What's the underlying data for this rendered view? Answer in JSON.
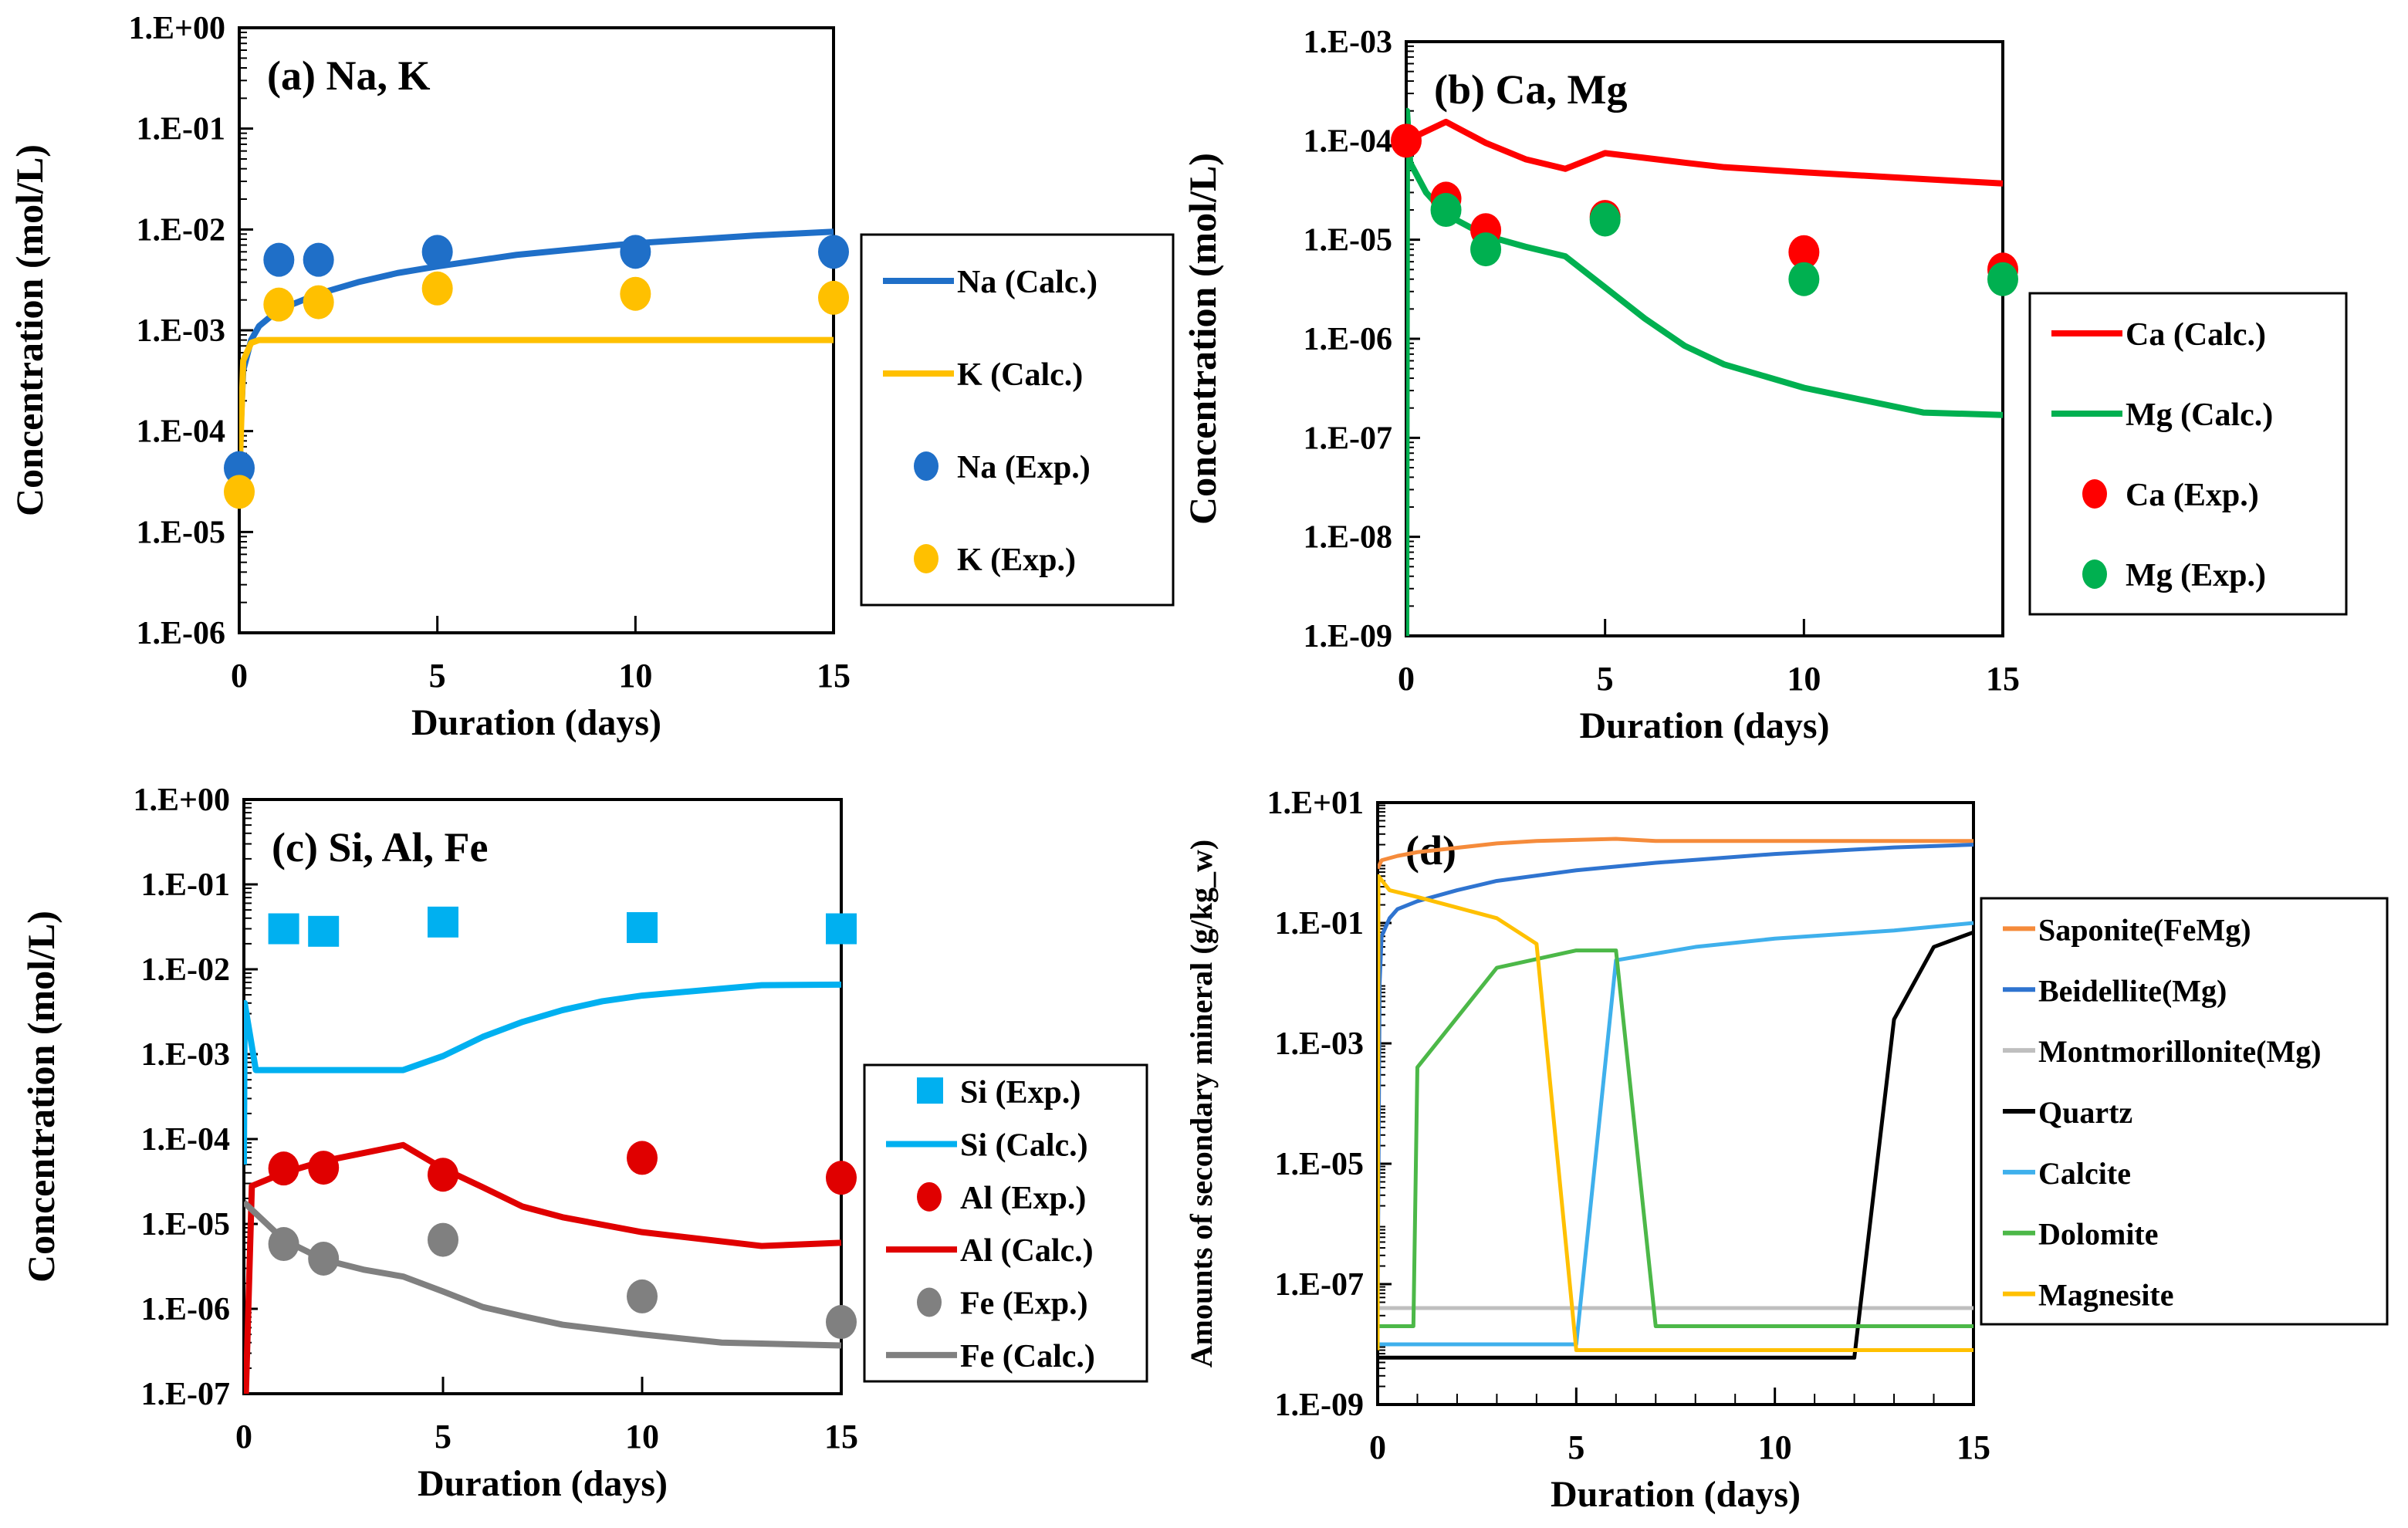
{
  "chart_data": [
    {
      "id": "a",
      "type": "line+scatter",
      "title": "(a) Na, K",
      "xlabel": "Duration (days)",
      "ylabel": "Concentration (mol/L)",
      "xlim": [
        0,
        15
      ],
      "ylim": [
        1e-06,
        1
      ],
      "yscale": "log",
      "xticks": [
        0,
        5,
        10,
        15
      ],
      "yticks": [
        1e-06,
        1e-05,
        0.0001,
        0.001,
        0.01,
        0.1,
        1
      ],
      "ytick_labels": [
        "1.E-06",
        "1.E-05",
        "1.E-04",
        "1.E-03",
        "1.E-02",
        "1.E-01",
        "1.E+00"
      ],
      "legend_position": "right",
      "series": [
        {
          "name": "Na (Calc.)",
          "kind": "line",
          "color": "#1f6fc8",
          "x": [
            0,
            0.1,
            0.3,
            0.5,
            1,
            2,
            3,
            4,
            5,
            7,
            10,
            13,
            15
          ],
          "y": [
            5e-05,
            0.0004,
            0.0008,
            0.0011,
            0.0016,
            0.0023,
            0.003,
            0.0037,
            0.0043,
            0.0056,
            0.0073,
            0.0087,
            0.0095
          ]
        },
        {
          "name": "K (Calc.)",
          "kind": "line",
          "color": "#ffc000",
          "x": [
            0,
            0.1,
            0.3,
            0.5,
            15
          ],
          "y": [
            3e-05,
            0.0005,
            0.00075,
            0.0008,
            0.0008
          ]
        },
        {
          "name": "Na (Exp.)",
          "kind": "circle",
          "color": "#1f6fc8",
          "x": [
            0,
            1,
            2,
            5,
            10,
            15
          ],
          "y": [
            4.3e-05,
            0.005,
            0.005,
            0.006,
            0.006,
            0.006
          ]
        },
        {
          "name": "K (Exp.)",
          "kind": "circle",
          "color": "#ffc000",
          "x": [
            0,
            1,
            2,
            5,
            10,
            15
          ],
          "y": [
            2.5e-05,
            0.0018,
            0.0019,
            0.0026,
            0.0023,
            0.0021
          ]
        }
      ]
    },
    {
      "id": "b",
      "type": "line+scatter",
      "title": "(b) Ca, Mg",
      "xlabel": "Duration (days)",
      "ylabel": "Concentration (mol/L)",
      "xlim": [
        0,
        15
      ],
      "ylim": [
        1e-09,
        0.001
      ],
      "yscale": "log",
      "xticks": [
        0,
        5,
        10,
        15
      ],
      "yticks": [
        1e-09,
        1e-08,
        1e-07,
        1e-06,
        1e-05,
        0.0001,
        0.001
      ],
      "ytick_labels": [
        "1.E-09",
        "1.E-08",
        "1.E-07",
        "1.E-06",
        "1.E-05",
        "1.E-04",
        "1.E-03"
      ],
      "legend_position": "right",
      "series": [
        {
          "name": "Ca (Calc.)",
          "kind": "line",
          "color": "#ff0000",
          "x": [
            0,
            1,
            2,
            3,
            4,
            5,
            7,
            8,
            10,
            13,
            15
          ],
          "y": [
            0.0001,
            0.000155,
            9.5e-05,
            6.5e-05,
            5.2e-05,
            7.5e-05,
            6e-05,
            5.4e-05,
            4.8e-05,
            4.1e-05,
            3.7e-05
          ]
        },
        {
          "name": "Mg (Calc.)",
          "kind": "line",
          "color": "#00b050",
          "x": [
            0,
            0.02,
            0.1,
            0.5,
            1,
            2,
            3,
            4,
            5,
            6,
            7,
            8,
            10,
            13,
            15
          ],
          "y": [
            1e-09,
            0.0002,
            6e-05,
            3e-05,
            1.8e-05,
            1.1e-05,
            8.5e-06,
            6.8e-06,
            3.3e-06,
            1.6e-06,
            8.5e-07,
            5.5e-07,
            3.2e-07,
            1.8e-07,
            1.7e-07
          ]
        },
        {
          "name": "Ca (Exp.)",
          "kind": "circle",
          "color": "#ff0000",
          "x": [
            0,
            1,
            2,
            5,
            10,
            15
          ],
          "y": [
            0.0001,
            2.6e-05,
            1.25e-05,
            1.7e-05,
            7.5e-06,
            5e-06
          ]
        },
        {
          "name": "Mg (Exp.)",
          "kind": "circle",
          "color": "#00b050",
          "x": [
            1,
            2,
            5,
            10,
            15
          ],
          "y": [
            2e-05,
            8e-06,
            1.6e-05,
            4e-06,
            4e-06
          ]
        }
      ]
    },
    {
      "id": "c",
      "type": "line+scatter",
      "title": "(c) Si, Al, Fe",
      "xlabel": "Duration (days)",
      "ylabel": "Concentration (mol/L)",
      "xlim": [
        0,
        15
      ],
      "ylim": [
        1e-07,
        1
      ],
      "yscale": "log",
      "xticks": [
        0,
        5,
        10,
        15
      ],
      "yticks": [
        1e-07,
        1e-06,
        1e-05,
        0.0001,
        0.001,
        0.01,
        0.1,
        1
      ],
      "ytick_labels": [
        "1.E-07",
        "1.E-06",
        "1.E-05",
        "1.E-04",
        "1.E-03",
        "1.E-02",
        "1.E-01",
        "1.E+00"
      ],
      "legend_position": "right",
      "series": [
        {
          "name": "Si (Exp.)",
          "kind": "square",
          "color": "#00b0f0",
          "x": [
            1,
            2,
            5,
            10,
            15
          ],
          "y": [
            0.03,
            0.028,
            0.036,
            0.031,
            0.03
          ]
        },
        {
          "name": "Si (Calc.)",
          "kind": "line",
          "color": "#00b0f0",
          "x": [
            0,
            0.02,
            0.3,
            4,
            5,
            6,
            7,
            8,
            9,
            10,
            13,
            15
          ],
          "y": [
            5e-05,
            0.004,
            0.00065,
            0.00065,
            0.00095,
            0.0016,
            0.0024,
            0.0033,
            0.0042,
            0.0049,
            0.0065,
            0.0066
          ]
        },
        {
          "name": "Al (Exp.)",
          "kind": "circle",
          "color": "#e00000",
          "x": [
            1,
            2,
            5,
            10,
            15
          ],
          "y": [
            4.5e-05,
            4.6e-05,
            3.8e-05,
            6e-05,
            3.5e-05
          ]
        },
        {
          "name": "Al (Calc.)",
          "kind": "line",
          "color": "#e00000",
          "x": [
            0,
            0.05,
            0.2,
            1,
            2,
            4,
            5,
            6,
            7,
            8,
            10,
            13,
            15
          ],
          "y": [
            1e-07,
            1e-07,
            2.8e-05,
            4e-05,
            5.5e-05,
            8.5e-05,
            4.5e-05,
            2.7e-05,
            1.6e-05,
            1.2e-05,
            8e-06,
            5.5e-06,
            6e-06
          ]
        },
        {
          "name": "Fe (Exp.)",
          "kind": "circle",
          "color": "#808080",
          "x": [
            1,
            2,
            5,
            10,
            15
          ],
          "y": [
            5.8e-06,
            3.9e-06,
            6.5e-06,
            1.4e-06,
            7e-07
          ]
        },
        {
          "name": "Fe (Calc.)",
          "kind": "line",
          "color": "#808080",
          "x": [
            0,
            1,
            2,
            3,
            4,
            5,
            6,
            7,
            8,
            10,
            12,
            15
          ],
          "y": [
            1.8e-05,
            6.5e-06,
            3.8e-06,
            2.9e-06,
            2.4e-06,
            1.6e-06,
            1.05e-06,
            8.2e-07,
            6.5e-07,
            5e-07,
            4e-07,
            3.7e-07
          ]
        }
      ]
    },
    {
      "id": "d",
      "type": "line",
      "title": "(d)",
      "xlabel": "Duration (days)",
      "ylabel": "Amounts of secondary mineral (g/kg_w)",
      "xlim": [
        0,
        15
      ],
      "ylim": [
        1e-09,
        10
      ],
      "yscale": "log",
      "xticks": [
        0,
        5,
        10,
        15
      ],
      "yticks": [
        1e-09,
        1e-07,
        1e-05,
        0.001,
        0.1,
        10
      ],
      "ytick_labels": [
        "1.E-09",
        "1.E-07",
        "1.E-05",
        "1.E-03",
        "1.E-01",
        "1.E+01"
      ],
      "legend_position": "right",
      "series": [
        {
          "name": "Saponite(FeMg)",
          "kind": "line",
          "color": "#f58b3b",
          "x": [
            0,
            0.1,
            0.5,
            1,
            3,
            4,
            6,
            7,
            15
          ],
          "y": [
            0.8,
            1.1,
            1.3,
            1.5,
            2.1,
            2.3,
            2.5,
            2.3,
            2.3
          ]
        },
        {
          "name": "Beidellite(Mg)",
          "kind": "line",
          "color": "#2f74d0",
          "x": [
            0,
            0.05,
            0.1,
            0.3,
            0.5,
            1,
            2,
            3,
            5,
            7,
            10,
            13,
            15
          ],
          "y": [
            5e-08,
            0.01,
            0.06,
            0.12,
            0.17,
            0.23,
            0.35,
            0.5,
            0.75,
            1.0,
            1.4,
            1.8,
            2.0
          ]
        },
        {
          "name": "Montmorillonite(Mg)",
          "kind": "line",
          "color": "#bfbfbf",
          "x": [
            0,
            15
          ],
          "y": [
            4e-08,
            4e-08
          ]
        },
        {
          "name": "Quartz",
          "kind": "line",
          "color": "#000000",
          "x": [
            0,
            12,
            13,
            14,
            15
          ],
          "y": [
            6e-09,
            6e-09,
            0.0025,
            0.04,
            0.07
          ]
        },
        {
          "name": "Calcite",
          "kind": "line",
          "color": "#3fb0ec",
          "x": [
            0,
            5,
            6,
            8,
            10,
            13,
            15
          ],
          "y": [
            1e-08,
            1e-08,
            0.024,
            0.04,
            0.055,
            0.075,
            0.1
          ]
        },
        {
          "name": "Dolomite",
          "kind": "line",
          "color": "#4cb848",
          "x": [
            0,
            0.9,
            1,
            3,
            5,
            6,
            7,
            15
          ],
          "y": [
            2e-08,
            2e-08,
            0.0004,
            0.018,
            0.035,
            0.035,
            2e-08,
            2e-08
          ]
        },
        {
          "name": "Magnesite",
          "kind": "line",
          "color": "#ffc000",
          "x": [
            0,
            0.02,
            0.3,
            1,
            2,
            3,
            4,
            5,
            15
          ],
          "y": [
            8e-09,
            0.6,
            0.35,
            0.27,
            0.18,
            0.12,
            0.045,
            8e-09,
            8e-09
          ]
        }
      ]
    }
  ]
}
